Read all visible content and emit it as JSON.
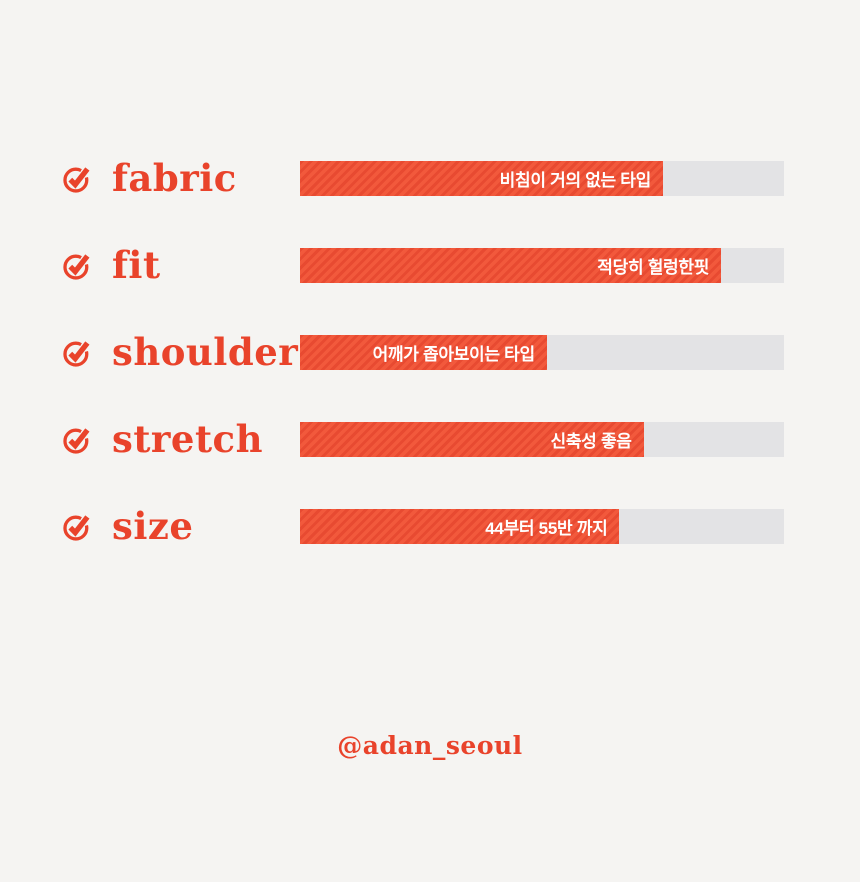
{
  "colors": {
    "background": "#f5f4f2",
    "accent": "#e9432b",
    "bar_fill": "#f2593c",
    "bar_stripe": "#e84a31",
    "bar_track": "#e3e3e5",
    "bar_text": "#ffffff"
  },
  "rows": [
    {
      "label": "fabric",
      "value_text": "비침이 거의 없는 타입",
      "percent": 75
    },
    {
      "label": "fit",
      "value_text": "적당히 헐렁한핏",
      "percent": 87
    },
    {
      "label": "shoulder",
      "value_text": "어깨가 좁아보이는 타입",
      "percent": 51
    },
    {
      "label": "stretch",
      "value_text": "신축성 좋음",
      "percent": 71
    },
    {
      "label": "size",
      "value_text": "44부터 55반 까지",
      "percent": 66
    }
  ],
  "footer": {
    "handle": "@adan_seoul"
  },
  "chart_data": {
    "type": "bar",
    "orientation": "horizontal",
    "categories": [
      "fabric",
      "fit",
      "shoulder",
      "stretch",
      "size"
    ],
    "values": [
      75,
      87,
      51,
      71,
      66
    ],
    "bar_labels": [
      "비침이 거의 없는 타입",
      "적당히 헐렁한핏",
      "어깨가 좁아보이는 타입",
      "신축성 좋음",
      "44부터 55반 까지"
    ],
    "title": "",
    "xlabel": "",
    "ylabel": "",
    "xlim": [
      0,
      100
    ],
    "grid": false,
    "legend": false,
    "annotation": "@adan_seoul"
  }
}
